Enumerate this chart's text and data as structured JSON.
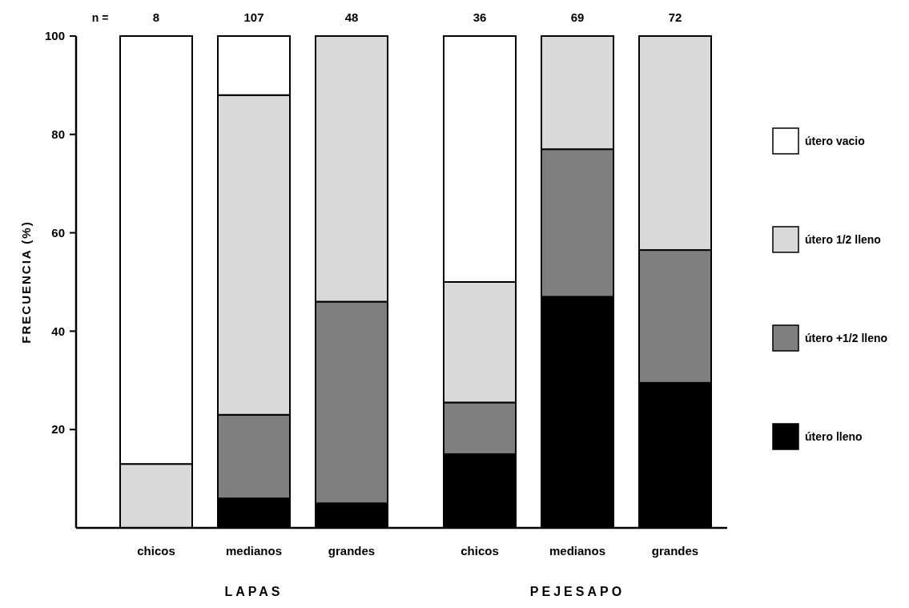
{
  "chart_data": {
    "type": "bar",
    "stacked": true,
    "ylabel": "FRECUENCIA (%)",
    "categories": [
      "chicos",
      "medianos",
      "grandes",
      "chicos",
      "medianos",
      "grandes"
    ],
    "series": [
      {
        "name": "útero lleno",
        "color": "#000000",
        "values": [
          0,
          6,
          5,
          15,
          47,
          29.5
        ]
      },
      {
        "name": "útero +1/2 lleno",
        "color": "#7f7f7f",
        "values": [
          0,
          17,
          41,
          10.5,
          30,
          27
        ]
      },
      {
        "name": "útero 1/2 lleno",
        "color": "#d9d9d9",
        "values": [
          13,
          65,
          54,
          24.5,
          23,
          43.5
        ]
      },
      {
        "name": "útero vacio",
        "color": "#ffffff",
        "values": [
          87,
          12,
          0,
          50,
          0,
          0
        ]
      }
    ],
    "annotations": [
      "n =",
      "8",
      "107",
      "48",
      "36",
      "69",
      "72",
      "LAPAS",
      "PEJESAPO"
    ],
    "ylim": [
      0,
      100
    ],
    "yticks": [
      20,
      40,
      60,
      80,
      100
    ],
    "legend": "right"
  }
}
